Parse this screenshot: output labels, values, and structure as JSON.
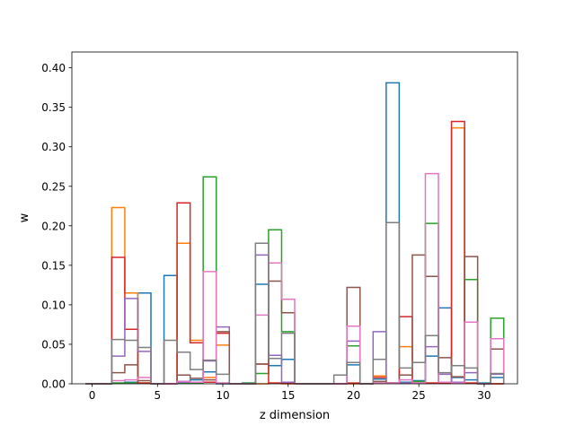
{
  "chart_data": {
    "type": "step",
    "title": "",
    "xlabel": "z dimension",
    "ylabel": "w",
    "xlim": [
      -1.55,
      32.55
    ],
    "ylim": [
      0,
      0.42
    ],
    "xticks": [
      0,
      5,
      10,
      15,
      20,
      25,
      30
    ],
    "yticks": [
      0.0,
      0.05,
      0.1,
      0.15,
      0.2,
      0.25,
      0.3,
      0.35,
      0.4
    ],
    "ytick_labels": [
      "0.00",
      "0.05",
      "0.10",
      "0.15",
      "0.20",
      "0.25",
      "0.30",
      "0.35",
      "0.40"
    ],
    "x": [
      0,
      1,
      2,
      3,
      4,
      5,
      6,
      7,
      8,
      9,
      10,
      11,
      12,
      13,
      14,
      15,
      16,
      17,
      18,
      19,
      20,
      21,
      22,
      23,
      24,
      25,
      26,
      27,
      28,
      29,
      30,
      31
    ],
    "series": [
      {
        "color": "#1f77b4",
        "values": [
          0,
          0,
          0.001,
          0.002,
          0.115,
          0,
          0.137,
          0.003,
          0.005,
          0.015,
          0,
          0,
          0.001,
          0.126,
          0.023,
          0.031,
          0,
          0,
          0,
          0,
          0.024,
          0,
          0.006,
          0.381,
          0.002,
          0.004,
          0.035,
          0.096,
          0.008,
          0.005,
          0.001,
          0.008
        ]
      },
      {
        "color": "#ff7f0e",
        "values": [
          0,
          0,
          0.223,
          0.115,
          0.001,
          0,
          0,
          0.178,
          0.055,
          0.008,
          0.049,
          0,
          0,
          0,
          0.001,
          0,
          0,
          0,
          0,
          0,
          0,
          0,
          0.01,
          0.001,
          0.047,
          0.001,
          0.001,
          0.001,
          0.324,
          0.001,
          0,
          0
        ]
      },
      {
        "color": "#2ca02c",
        "values": [
          0,
          0,
          0.001,
          0.001,
          0.001,
          0,
          0,
          0.001,
          0.001,
          0.262,
          0.001,
          0,
          0.001,
          0.013,
          0.195,
          0.066,
          0,
          0,
          0,
          0,
          0.048,
          0,
          0.001,
          0.001,
          0.001,
          0.003,
          0.203,
          0.001,
          0.001,
          0.132,
          0,
          0.083
        ]
      },
      {
        "color": "#d62728",
        "values": [
          0,
          0,
          0.16,
          0.069,
          0.001,
          0,
          0,
          0.229,
          0.052,
          0.002,
          0.064,
          0,
          0,
          0.025,
          0.001,
          0.001,
          0,
          0,
          0,
          0,
          0.001,
          0,
          0.008,
          0.001,
          0.085,
          0.001,
          0.001,
          0.001,
          0.332,
          0.001,
          0,
          0
        ]
      },
      {
        "color": "#9467bd",
        "values": [
          0,
          0,
          0.035,
          0.108,
          0.041,
          0,
          0,
          0.002,
          0.002,
          0.029,
          0.072,
          0,
          0,
          0.163,
          0.036,
          0.002,
          0,
          0,
          0,
          0,
          0.054,
          0,
          0.066,
          0.001,
          0.001,
          0.001,
          0.047,
          0.012,
          0.002,
          0.014,
          0,
          0.012
        ]
      },
      {
        "color": "#8c564b",
        "values": [
          0,
          0,
          0.014,
          0.024,
          0.004,
          0,
          0,
          0.011,
          0.007,
          0.005,
          0.066,
          0,
          0,
          0.025,
          0.13,
          0.09,
          0,
          0,
          0,
          0,
          0.122,
          0,
          0.003,
          0.001,
          0.011,
          0.163,
          0.136,
          0.033,
          0.009,
          0.161,
          0,
          0.044
        ]
      },
      {
        "color": "#e377c2",
        "values": [
          0,
          0,
          0.004,
          0.005,
          0.008,
          0,
          0,
          0.003,
          0.002,
          0.142,
          0.001,
          0,
          0,
          0.087,
          0.153,
          0.107,
          0,
          0,
          0,
          0,
          0.073,
          0,
          0.001,
          0.001,
          0.005,
          0.001,
          0.266,
          0.002,
          0.001,
          0.078,
          0,
          0.057
        ]
      },
      {
        "color": "#7f7f7f",
        "values": [
          0,
          0,
          0.056,
          0.055,
          0.046,
          0,
          0.055,
          0.04,
          0.018,
          0.03,
          0.012,
          0,
          0,
          0.178,
          0.032,
          0.064,
          0,
          0,
          0,
          0.011,
          0.027,
          0,
          0.031,
          0.204,
          0.02,
          0.027,
          0.061,
          0.014,
          0.023,
          0.02,
          0,
          0.013
        ]
      }
    ]
  }
}
